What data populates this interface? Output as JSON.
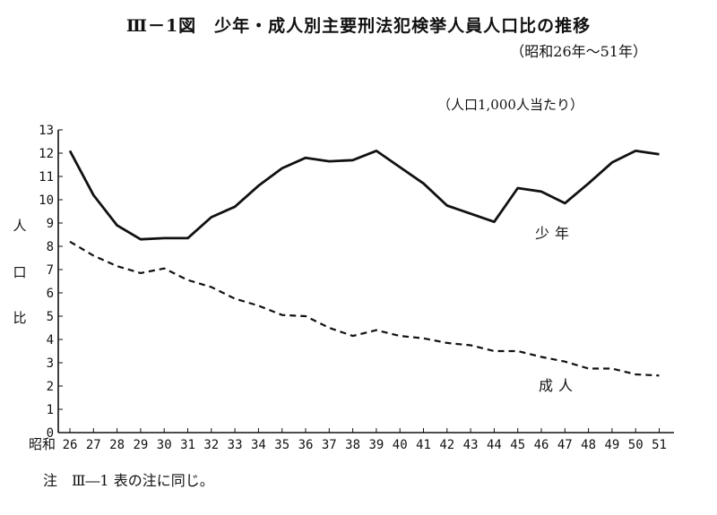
{
  "header": {
    "title": "Ⅲ－1図　少年・成人別主要刑法犯検挙人員人口比の推移",
    "subtitle": "（昭和26年～51年）",
    "unit": "（人口1,000人当たり）"
  },
  "note": "注　Ⅲ―1 表の注に同じ。",
  "chart_data": {
    "type": "line",
    "title": "Ⅲ－1図　少年・成人別主要刑法犯検挙人員人口比の推移",
    "subtitle": "（昭和26年～51年）",
    "ylabel": "人口比",
    "ylabel_chars": [
      "人",
      "口",
      "比"
    ],
    "x_prefix": "昭和",
    "x": [
      "26",
      "27",
      "28",
      "29",
      "30",
      "31",
      "32",
      "33",
      "34",
      "35",
      "36",
      "37",
      "38",
      "39",
      "40",
      "41",
      "42",
      "43",
      "44",
      "45",
      "46",
      "47",
      "48",
      "49",
      "50",
      "51"
    ],
    "ylim": [
      0,
      13
    ],
    "yticks": [
      "0",
      "1",
      "2",
      "3",
      "4",
      "5",
      "6",
      "7",
      "8",
      "9",
      "10",
      "11",
      "12",
      "13"
    ],
    "grid": false,
    "series": [
      {
        "name": "少年",
        "style": "solid",
        "values": [
          12.1,
          10.2,
          8.9,
          8.3,
          8.35,
          8.35,
          9.25,
          9.7,
          10.6,
          11.35,
          11.8,
          11.65,
          11.7,
          12.1,
          11.4,
          10.7,
          9.75,
          9.4,
          9.05,
          10.5,
          10.35,
          9.85,
          10.7,
          11.6,
          12.1,
          11.95
        ]
      },
      {
        "name": "成人",
        "style": "dashed",
        "values": [
          8.2,
          7.6,
          7.15,
          6.85,
          7.05,
          6.55,
          6.25,
          5.75,
          5.45,
          5.05,
          5.0,
          4.5,
          4.15,
          4.4,
          4.15,
          4.05,
          3.85,
          3.75,
          3.5,
          3.5,
          3.25,
          3.05,
          2.75,
          2.75,
          2.5,
          2.45
        ]
      }
    ],
    "series_labels": [
      "少年",
      "成人"
    ]
  }
}
